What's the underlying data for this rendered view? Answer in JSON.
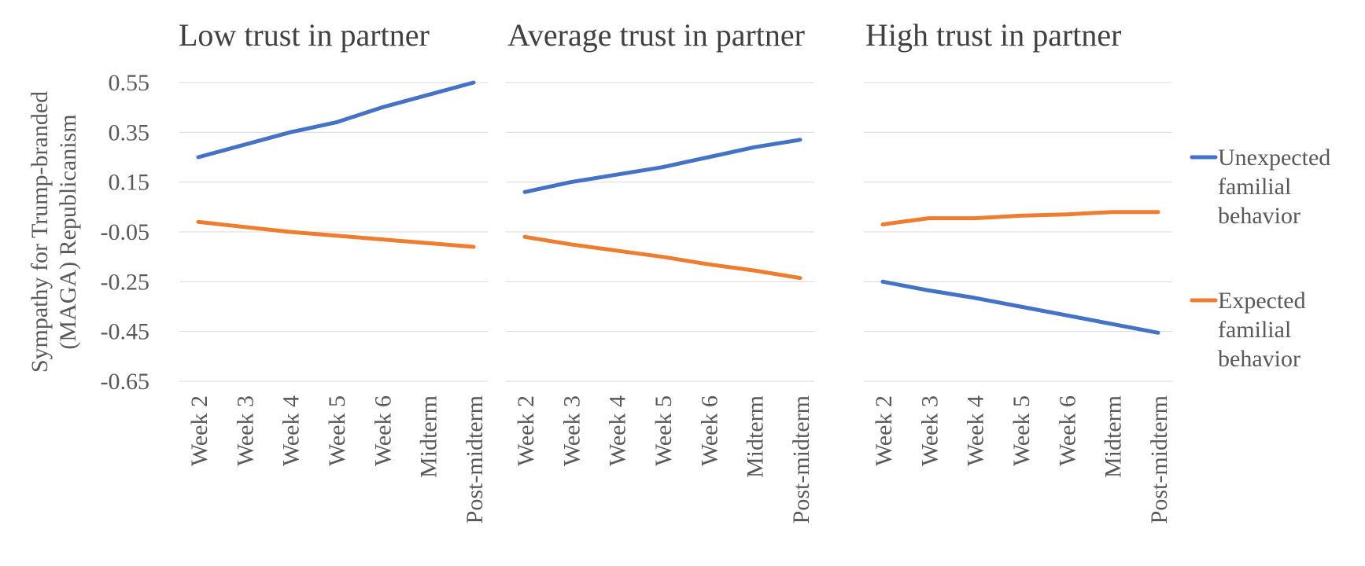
{
  "chart_data": {
    "type": "line",
    "ylabel": "Sympathy for Trump-branded (MAGA) Republicanism",
    "ylabel_lines": [
      "Sympathy for Trump-branded",
      "(MAGA) Republicanism"
    ],
    "ylim": [
      -0.65,
      0.55
    ],
    "yticks": [
      0.55,
      0.35,
      0.15,
      -0.05,
      -0.25,
      -0.45,
      -0.65
    ],
    "ytick_labels": [
      "0.55",
      "0.35",
      "0.15",
      "-0.05",
      "-0.25",
      "-0.45",
      "-0.65"
    ],
    "categories": [
      "Week 2",
      "Week 3",
      "Week 4",
      "Week 5",
      "Week 6",
      "Midterm",
      "Post-midterm"
    ],
    "legend": [
      {
        "name": "Unexpected familial behavior",
        "lines": [
          "Unexpected",
          "familial",
          "behavior"
        ],
        "color": "#4472c4"
      },
      {
        "name": "Expected familial behavior",
        "lines": [
          "Expected",
          "familial",
          "behavior"
        ],
        "color": "#ed7d31"
      }
    ],
    "legend_position": "right",
    "grid": true,
    "panels": [
      {
        "title": "Low trust in partner",
        "series": [
          {
            "name": "Unexpected familial behavior",
            "values": [
              0.25,
              0.3,
              0.35,
              0.39,
              0.45,
              0.5,
              0.55
            ]
          },
          {
            "name": "Expected familial behavior",
            "values": [
              -0.01,
              -0.03,
              -0.05,
              -0.065,
              -0.08,
              -0.095,
              -0.11
            ]
          }
        ]
      },
      {
        "title": "Average trust in partner",
        "series": [
          {
            "name": "Unexpected familial behavior",
            "values": [
              0.11,
              0.15,
              0.18,
              0.21,
              0.25,
              0.29,
              0.32
            ]
          },
          {
            "name": "Expected familial behavior",
            "values": [
              -0.07,
              -0.1,
              -0.125,
              -0.15,
              -0.18,
              -0.205,
              -0.235
            ]
          }
        ]
      },
      {
        "title": "High trust in partner",
        "series": [
          {
            "name": "Unexpected familial behavior",
            "values": [
              -0.25,
              -0.285,
              -0.315,
              -0.35,
              -0.385,
              -0.42,
              -0.455
            ]
          },
          {
            "name": "Expected familial behavior",
            "values": [
              -0.02,
              0.005,
              0.005,
              0.015,
              0.02,
              0.03,
              0.03
            ]
          }
        ]
      }
    ]
  }
}
